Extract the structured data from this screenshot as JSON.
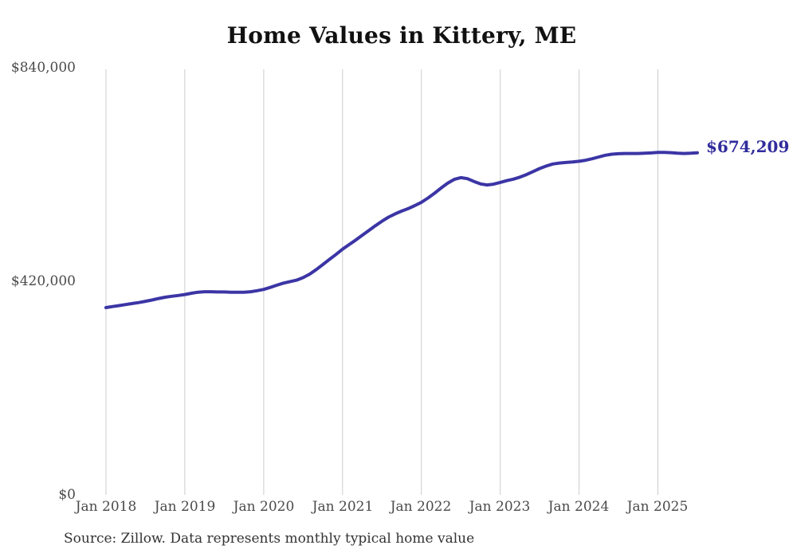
{
  "page": {
    "background_color": "#ffffff"
  },
  "chart_data": {
    "type": "line",
    "title": "Home Values in Kittery, ME",
    "xlabel": "",
    "ylabel": "",
    "ylim": [
      0,
      840000
    ],
    "grid": "vertical-only",
    "legend": "none",
    "line_color": "#3b35a5",
    "gridline_color": "#cccccc",
    "axis_label_color": "#4a4a4a",
    "end_label": "$674,209",
    "end_label_color": "#312c9c",
    "end_value": 674209,
    "source_note": "Source: Zillow. Data represents monthly typical home value",
    "y_tick_labels": [
      "$840,000",
      "$420,000",
      "$0"
    ],
    "y_tick_values": [
      840000,
      420000,
      0
    ],
    "x_tick_labels": [
      "Jan 2018",
      "Jan 2019",
      "Jan 2020",
      "Jan 2021",
      "Jan 2022",
      "Jan 2023",
      "Jan 2024",
      "Jan 2025"
    ],
    "x_tick_indices": [
      0,
      12,
      24,
      36,
      48,
      60,
      72,
      84
    ],
    "x": [
      "2018-01",
      "2018-02",
      "2018-03",
      "2018-04",
      "2018-05",
      "2018-06",
      "2018-07",
      "2018-08",
      "2018-09",
      "2018-10",
      "2018-11",
      "2018-12",
      "2019-01",
      "2019-02",
      "2019-03",
      "2019-04",
      "2019-05",
      "2019-06",
      "2019-07",
      "2019-08",
      "2019-09",
      "2019-10",
      "2019-11",
      "2019-12",
      "2020-01",
      "2020-02",
      "2020-03",
      "2020-04",
      "2020-05",
      "2020-06",
      "2020-07",
      "2020-08",
      "2020-09",
      "2020-10",
      "2020-11",
      "2020-12",
      "2021-01",
      "2021-02",
      "2021-03",
      "2021-04",
      "2021-05",
      "2021-06",
      "2021-07",
      "2021-08",
      "2021-09",
      "2021-10",
      "2021-11",
      "2021-12",
      "2022-01",
      "2022-02",
      "2022-03",
      "2022-04",
      "2022-05",
      "2022-06",
      "2022-07",
      "2022-08",
      "2022-09",
      "2022-10",
      "2022-11",
      "2022-12",
      "2023-01",
      "2023-02",
      "2023-03",
      "2023-04",
      "2023-05",
      "2023-06",
      "2023-07",
      "2023-08",
      "2023-09",
      "2023-10",
      "2023-11",
      "2023-12",
      "2024-01",
      "2024-02",
      "2024-03",
      "2024-04",
      "2024-05",
      "2024-06",
      "2024-07",
      "2024-08",
      "2024-09",
      "2024-10",
      "2024-11",
      "2024-12",
      "2025-01",
      "2025-02",
      "2025-03",
      "2025-04",
      "2025-05",
      "2025-06",
      "2025-07"
    ],
    "values": [
      367000,
      369000,
      371000,
      373000,
      375000,
      377000,
      379500,
      382000,
      385000,
      387500,
      389500,
      391000,
      393000,
      395500,
      397500,
      398500,
      398500,
      398000,
      398000,
      397500,
      397500,
      397500,
      398500,
      400500,
      403000,
      407000,
      411500,
      415500,
      418500,
      421500,
      426500,
      433500,
      442500,
      452500,
      462500,
      472500,
      483000,
      492000,
      501000,
      510500,
      520000,
      529500,
      538500,
      546500,
      553000,
      558500,
      563500,
      569500,
      576000,
      584500,
      594000,
      604500,
      614000,
      621500,
      625000,
      623000,
      617500,
      612500,
      610500,
      612000,
      615500,
      619000,
      622000,
      626000,
      631000,
      637000,
      643000,
      648000,
      652000,
      654000,
      655000,
      656000,
      657500,
      659500,
      662500,
      666000,
      669500,
      671500,
      672500,
      673000,
      673000,
      673000,
      673500,
      674000,
      675000,
      675000,
      674500,
      673500,
      673000,
      673500,
      674209
    ]
  }
}
